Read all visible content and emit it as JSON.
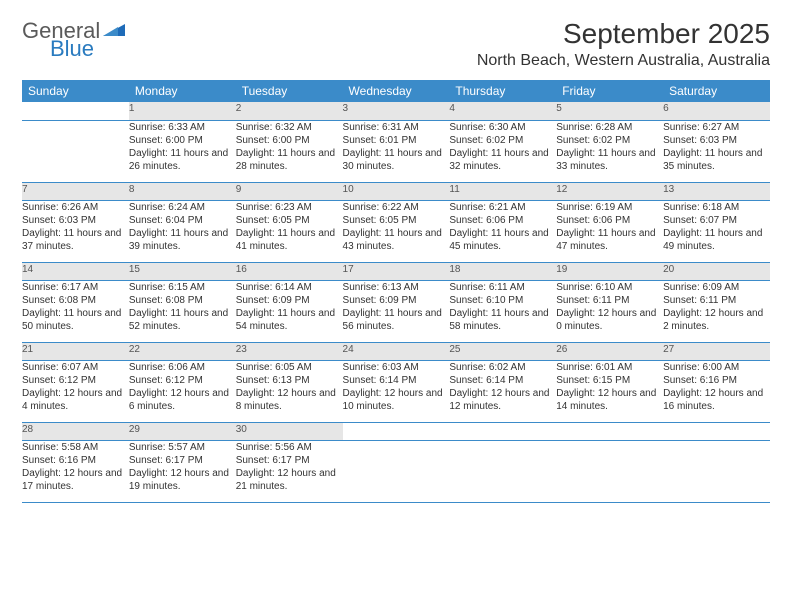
{
  "brand": {
    "top": "General",
    "bottom": "Blue"
  },
  "title": "September 2025",
  "location": "North Beach, Western Australia, Australia",
  "colors": {
    "header_bg": "#3b8bc9",
    "header_text": "#ffffff",
    "daynum_bg": "#e6e6e6",
    "cell_bg": "#ffffff",
    "border": "#3b8bc9",
    "logo_gray": "#5a5a5a",
    "logo_blue": "#2a7bbf"
  },
  "weekdays": [
    "Sunday",
    "Monday",
    "Tuesday",
    "Wednesday",
    "Thursday",
    "Friday",
    "Saturday"
  ],
  "weeks": [
    {
      "nums": [
        "",
        "1",
        "2",
        "3",
        "4",
        "5",
        "6"
      ],
      "cells": [
        null,
        {
          "sunrise": "Sunrise: 6:33 AM",
          "sunset": "Sunset: 6:00 PM",
          "day": "Daylight: 11 hours and 26 minutes."
        },
        {
          "sunrise": "Sunrise: 6:32 AM",
          "sunset": "Sunset: 6:00 PM",
          "day": "Daylight: 11 hours and 28 minutes."
        },
        {
          "sunrise": "Sunrise: 6:31 AM",
          "sunset": "Sunset: 6:01 PM",
          "day": "Daylight: 11 hours and 30 minutes."
        },
        {
          "sunrise": "Sunrise: 6:30 AM",
          "sunset": "Sunset: 6:02 PM",
          "day": "Daylight: 11 hours and 32 minutes."
        },
        {
          "sunrise": "Sunrise: 6:28 AM",
          "sunset": "Sunset: 6:02 PM",
          "day": "Daylight: 11 hours and 33 minutes."
        },
        {
          "sunrise": "Sunrise: 6:27 AM",
          "sunset": "Sunset: 6:03 PM",
          "day": "Daylight: 11 hours and 35 minutes."
        }
      ]
    },
    {
      "nums": [
        "7",
        "8",
        "9",
        "10",
        "11",
        "12",
        "13"
      ],
      "cells": [
        {
          "sunrise": "Sunrise: 6:26 AM",
          "sunset": "Sunset: 6:03 PM",
          "day": "Daylight: 11 hours and 37 minutes."
        },
        {
          "sunrise": "Sunrise: 6:24 AM",
          "sunset": "Sunset: 6:04 PM",
          "day": "Daylight: 11 hours and 39 minutes."
        },
        {
          "sunrise": "Sunrise: 6:23 AM",
          "sunset": "Sunset: 6:05 PM",
          "day": "Daylight: 11 hours and 41 minutes."
        },
        {
          "sunrise": "Sunrise: 6:22 AM",
          "sunset": "Sunset: 6:05 PM",
          "day": "Daylight: 11 hours and 43 minutes."
        },
        {
          "sunrise": "Sunrise: 6:21 AM",
          "sunset": "Sunset: 6:06 PM",
          "day": "Daylight: 11 hours and 45 minutes."
        },
        {
          "sunrise": "Sunrise: 6:19 AM",
          "sunset": "Sunset: 6:06 PM",
          "day": "Daylight: 11 hours and 47 minutes."
        },
        {
          "sunrise": "Sunrise: 6:18 AM",
          "sunset": "Sunset: 6:07 PM",
          "day": "Daylight: 11 hours and 49 minutes."
        }
      ]
    },
    {
      "nums": [
        "14",
        "15",
        "16",
        "17",
        "18",
        "19",
        "20"
      ],
      "cells": [
        {
          "sunrise": "Sunrise: 6:17 AM",
          "sunset": "Sunset: 6:08 PM",
          "day": "Daylight: 11 hours and 50 minutes."
        },
        {
          "sunrise": "Sunrise: 6:15 AM",
          "sunset": "Sunset: 6:08 PM",
          "day": "Daylight: 11 hours and 52 minutes."
        },
        {
          "sunrise": "Sunrise: 6:14 AM",
          "sunset": "Sunset: 6:09 PM",
          "day": "Daylight: 11 hours and 54 minutes."
        },
        {
          "sunrise": "Sunrise: 6:13 AM",
          "sunset": "Sunset: 6:09 PM",
          "day": "Daylight: 11 hours and 56 minutes."
        },
        {
          "sunrise": "Sunrise: 6:11 AM",
          "sunset": "Sunset: 6:10 PM",
          "day": "Daylight: 11 hours and 58 minutes."
        },
        {
          "sunrise": "Sunrise: 6:10 AM",
          "sunset": "Sunset: 6:11 PM",
          "day": "Daylight: 12 hours and 0 minutes."
        },
        {
          "sunrise": "Sunrise: 6:09 AM",
          "sunset": "Sunset: 6:11 PM",
          "day": "Daylight: 12 hours and 2 minutes."
        }
      ]
    },
    {
      "nums": [
        "21",
        "22",
        "23",
        "24",
        "25",
        "26",
        "27"
      ],
      "cells": [
        {
          "sunrise": "Sunrise: 6:07 AM",
          "sunset": "Sunset: 6:12 PM",
          "day": "Daylight: 12 hours and 4 minutes."
        },
        {
          "sunrise": "Sunrise: 6:06 AM",
          "sunset": "Sunset: 6:12 PM",
          "day": "Daylight: 12 hours and 6 minutes."
        },
        {
          "sunrise": "Sunrise: 6:05 AM",
          "sunset": "Sunset: 6:13 PM",
          "day": "Daylight: 12 hours and 8 minutes."
        },
        {
          "sunrise": "Sunrise: 6:03 AM",
          "sunset": "Sunset: 6:14 PM",
          "day": "Daylight: 12 hours and 10 minutes."
        },
        {
          "sunrise": "Sunrise: 6:02 AM",
          "sunset": "Sunset: 6:14 PM",
          "day": "Daylight: 12 hours and 12 minutes."
        },
        {
          "sunrise": "Sunrise: 6:01 AM",
          "sunset": "Sunset: 6:15 PM",
          "day": "Daylight: 12 hours and 14 minutes."
        },
        {
          "sunrise": "Sunrise: 6:00 AM",
          "sunset": "Sunset: 6:16 PM",
          "day": "Daylight: 12 hours and 16 minutes."
        }
      ]
    },
    {
      "nums": [
        "28",
        "29",
        "30",
        "",
        "",
        "",
        ""
      ],
      "cells": [
        {
          "sunrise": "Sunrise: 5:58 AM",
          "sunset": "Sunset: 6:16 PM",
          "day": "Daylight: 12 hours and 17 minutes."
        },
        {
          "sunrise": "Sunrise: 5:57 AM",
          "sunset": "Sunset: 6:17 PM",
          "day": "Daylight: 12 hours and 19 minutes."
        },
        {
          "sunrise": "Sunrise: 5:56 AM",
          "sunset": "Sunset: 6:17 PM",
          "day": "Daylight: 12 hours and 21 minutes."
        },
        null,
        null,
        null,
        null
      ]
    }
  ]
}
